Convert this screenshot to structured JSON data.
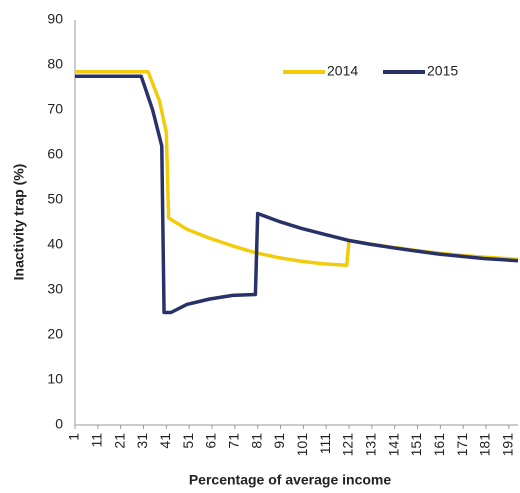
{
  "chart_data": {
    "type": "line",
    "xlabel": "Percentage of average income",
    "ylabel": "Inactivity trap (%)",
    "xlim": [
      1,
      195
    ],
    "xticks": [
      1,
      11,
      21,
      31,
      41,
      51,
      61,
      71,
      81,
      91,
      101,
      111,
      121,
      131,
      141,
      151,
      161,
      171,
      181,
      191
    ],
    "ylim": [
      0,
      90
    ],
    "yticks": [
      0,
      10,
      20,
      30,
      40,
      50,
      60,
      70,
      80,
      90
    ],
    "grid": false,
    "legend": "top-right",
    "series": [
      {
        "name": "2014",
        "color": "#f2cc0c",
        "x": [
          1,
          33,
          38,
          41,
          42,
          50,
          60,
          70,
          80,
          90,
          100,
          110,
          120,
          121,
          130,
          140,
          150,
          160,
          170,
          180,
          195
        ],
        "values": [
          78.5,
          78.5,
          72,
          65,
          46,
          43.5,
          41.5,
          39.8,
          38.3,
          37.2,
          36.4,
          35.8,
          35.5,
          41,
          40.2,
          39.5,
          38.8,
          38.2,
          37.7,
          37.3,
          36.8
        ]
      },
      {
        "name": "2015",
        "color": "#283168",
        "x": [
          1,
          30,
          35,
          39,
          40,
          43,
          50,
          60,
          70,
          80,
          81,
          90,
          100,
          110,
          121,
          130,
          140,
          150,
          160,
          170,
          180,
          195
        ],
        "values": [
          77.5,
          77.5,
          70,
          62,
          25,
          25,
          26.8,
          28,
          28.8,
          29,
          47,
          45.3,
          43.7,
          42.4,
          41,
          40.2,
          39.4,
          38.7,
          38,
          37.5,
          37,
          36.5
        ]
      }
    ]
  }
}
